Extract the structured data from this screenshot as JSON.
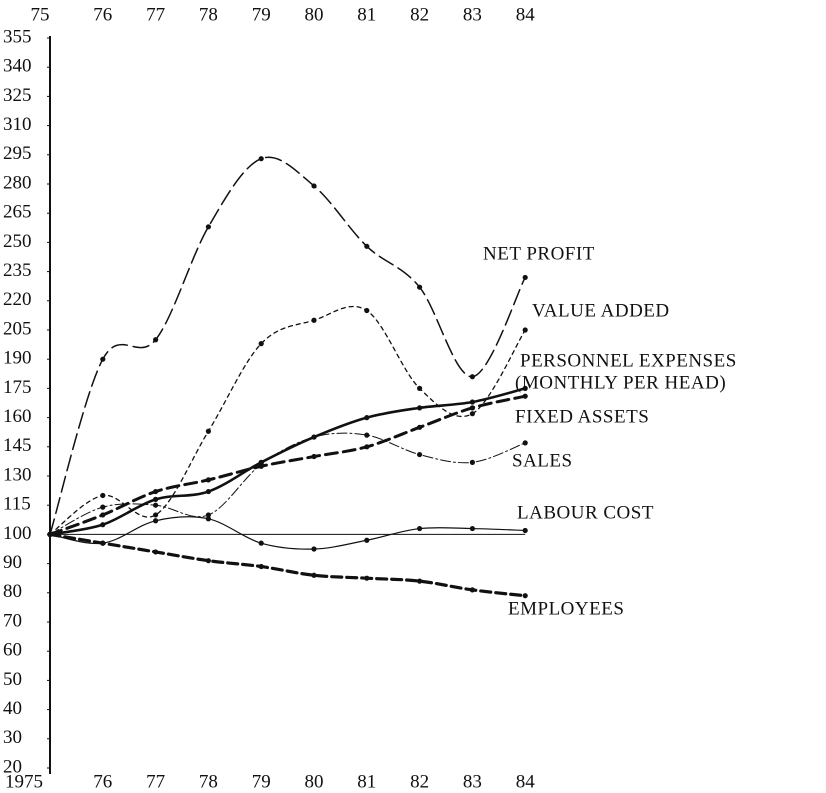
{
  "chart_data": {
    "type": "line",
    "categories": [
      "1975",
      "76",
      "77",
      "78",
      "79",
      "80",
      "81",
      "82",
      "83",
      "84"
    ],
    "x_top_labels": [
      "75",
      "76",
      "77",
      "78",
      "79",
      "80",
      "81",
      "82",
      "83",
      "84"
    ],
    "yticks": [
      355,
      340,
      325,
      310,
      295,
      280,
      265,
      250,
      235,
      220,
      205,
      190,
      175,
      160,
      145,
      130,
      115,
      100,
      90,
      80,
      70,
      60,
      50,
      40,
      30,
      20
    ],
    "ylim": [
      20,
      355
    ],
    "series": [
      {
        "name": "NET PROFIT",
        "color": "#111",
        "dash": "long-dash",
        "values": [
          100,
          190,
          200,
          258,
          293,
          279,
          248,
          227,
          181,
          232
        ]
      },
      {
        "name": "VALUE ADDED",
        "color": "#111",
        "dash": "short-dash",
        "values": [
          100,
          120,
          110,
          153,
          198,
          210,
          215,
          175,
          162,
          205
        ]
      },
      {
        "name": "PERSONNEL EXPENSES",
        "note": "(MONTHLY PER HEAD)",
        "color": "#111",
        "dash": "thick-solid",
        "values": [
          100,
          105,
          118,
          122,
          137,
          150,
          160,
          165,
          168,
          175
        ]
      },
      {
        "name": "FIXED ASSETS",
        "color": "#111",
        "dash": "thick-dash",
        "values": [
          100,
          110,
          122,
          128,
          135,
          140,
          145,
          155,
          165,
          171
        ]
      },
      {
        "name": "SALES",
        "color": "#111",
        "dash": "thin-dash",
        "values": [
          100,
          114,
          115,
          110,
          136,
          150,
          151,
          141,
          137,
          147
        ]
      },
      {
        "name": "LABOUR COST",
        "color": "#111",
        "dash": "thin-solid",
        "values": [
          100,
          97,
          107,
          108,
          97,
          95,
          98,
          103,
          103,
          102
        ]
      },
      {
        "name": "EMPLOYEES",
        "color": "#111",
        "dash": "heavy-dash",
        "values": [
          100,
          97,
          94,
          91,
          89,
          86,
          85,
          84,
          81,
          79
        ]
      }
    ]
  }
}
